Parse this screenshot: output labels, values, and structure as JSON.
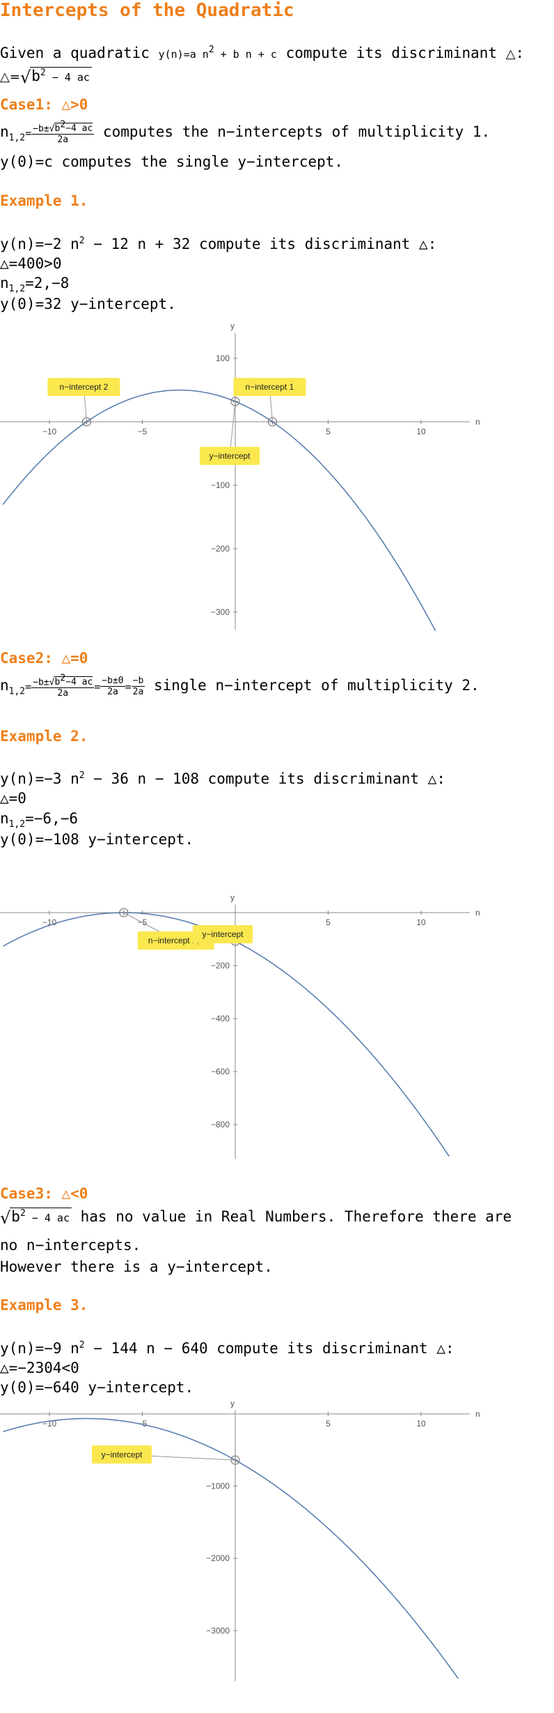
{
  "title": "Intercepts of the Quadratic",
  "intro": {
    "prefix": "Given a quadratic ",
    "formula_lhs": "y(n)=a n",
    "formula_rest": " + b n + c",
    "suffix": " compute its discriminant ",
    "triangle": "△",
    "colon": ":",
    "disc_lhs": "△=",
    "disc_expr_a": "b",
    "disc_expr_b": " − 4 ac",
    "two": "2"
  },
  "case1": {
    "heading": "Case1: △>0",
    "roots_label": "n",
    "roots_sub": "1,2",
    "roots_eq": "=",
    "frac_num_a": "−b±",
    "frac_num_b": "b",
    "frac_num_c": "−4 ac",
    "frac_den": "2a",
    "roots_text": " computes the n−intercepts of multiplicity 1.",
    "y_text": "y(0)=c computes the single y−intercept."
  },
  "example1": {
    "heading": "Example 1.",
    "eq_a": "y(n)=−2 n",
    "eq_b": " − 12 n + 32 compute its discriminant △:",
    "disc": "△=400>0",
    "roots_label": "n",
    "roots_sub": "1,2",
    "roots_val": "=2,−8",
    "yint": "y(0)=32  y−intercept."
  },
  "case2": {
    "heading": "Case2: △=0",
    "roots_label": "n",
    "roots_sub": "1,2",
    "frac1_num_a": "−b±",
    "frac1_num_b": "b",
    "frac1_num_c": "−4 ac",
    "frac1_den": "2a",
    "eq": "=",
    "frac2_num": "−b±0",
    "frac2_den": "2a",
    "frac3_num": "−b",
    "frac3_den": "2a",
    "text": " single n−intercept of multiplicity 2."
  },
  "example2": {
    "heading": "Example 2.",
    "eq_a": "y(n)=−3 n",
    "eq_b": " − 36 n − 108 compute its discriminant △:",
    "disc": "△=0",
    "roots_label": "n",
    "roots_sub": "1,2",
    "roots_val": "=−6,−6",
    "yint": "y(0)=−108  y−intercept."
  },
  "case3": {
    "heading": "Case3: △<0",
    "expr_a": "b",
    "expr_b": " − 4 ac",
    "text1": " has no value in Real Numbers. Therefore there are",
    "text2": "no n−intercepts.",
    "text3": "However there is a y−intercept."
  },
  "example3": {
    "heading": "Example 3.",
    "eq_a": "y(n)=−9 n",
    "eq_b": " − 144 n − 640 compute its discriminant △:",
    "disc": "△=−2304<0",
    "yint": "y(0)=−640 y−intercept."
  },
  "colors": {
    "heading": "#ee7f1a",
    "curve": "#5a7fb0",
    "callout": "#fbe84f",
    "axis": "#888888"
  },
  "chart_data": [
    {
      "type": "line",
      "function": "y = -2 n^2 - 12 n + 32",
      "coefficients": {
        "a": -2,
        "b": -12,
        "c": 32
      },
      "xlabel": "n",
      "ylabel": "y",
      "xlim": [
        -12.5,
        12
      ],
      "ylim": [
        -330,
        140
      ],
      "xticks": [
        -10,
        -5,
        5,
        10
      ],
      "xtick_labels": [
        "−10",
        "−5",
        "5",
        "10"
      ],
      "yticks": [
        100,
        -100,
        -200,
        -300
      ],
      "ytick_labels": [
        "100",
        "−100",
        "−200",
        "−300"
      ],
      "annotations": [
        {
          "label": "n−intercept 2",
          "x": -8,
          "y": 0
        },
        {
          "label": "n−intercept 1",
          "x": 2,
          "y": 0
        },
        {
          "label": "y−intercept",
          "x": 0,
          "y": 32
        }
      ]
    },
    {
      "type": "line",
      "function": "y = -3 n^2 - 36 n - 108",
      "coefficients": {
        "a": -3,
        "b": -36,
        "c": -108
      },
      "xlabel": "n",
      "ylabel": "y",
      "xlim": [
        -12.5,
        12
      ],
      "ylim": [
        -930,
        30
      ],
      "xticks": [
        -10,
        -5,
        5,
        10
      ],
      "xtick_labels": [
        "−10",
        "−5",
        "5",
        "10"
      ],
      "yticks": [
        -200,
        -400,
        -600,
        -800
      ],
      "ytick_labels": [
        "−200",
        "−400",
        "−600",
        "−800"
      ],
      "annotations": [
        {
          "label": "n−intercept 1,2",
          "x": -6,
          "y": 0
        },
        {
          "label": "y−intercept",
          "x": 0,
          "y": -108
        }
      ]
    },
    {
      "type": "line",
      "function": "y = -9 n^2 - 144 n - 640",
      "coefficients": {
        "a": -9,
        "b": -144,
        "c": -640
      },
      "xlabel": "n",
      "ylabel": "y",
      "xlim": [
        -12.5,
        12
      ],
      "ylim": [
        -3700,
        50
      ],
      "xticks": [
        -10,
        -5,
        5,
        10
      ],
      "xtick_labels": [
        "−10",
        "−5",
        "5",
        "10"
      ],
      "yticks": [
        -1000,
        -2000,
        -3000
      ],
      "ytick_labels": [
        "−1000",
        "−2000",
        "−3000"
      ],
      "annotations": [
        {
          "label": "y−intercept",
          "x": 0,
          "y": -640
        }
      ]
    }
  ]
}
